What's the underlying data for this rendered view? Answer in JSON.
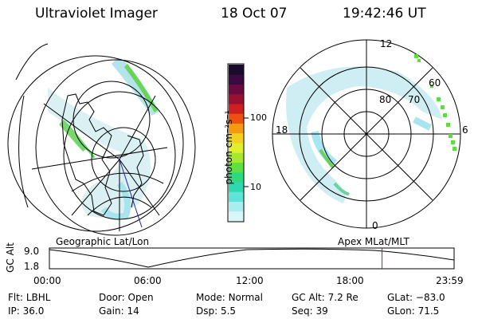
{
  "header": {
    "instrument": "Ultraviolet Imager",
    "date": "18 Oct 07",
    "time": "19:42:46 UT"
  },
  "colorbar": {
    "label": "photon cm⁻²s⁻¹",
    "ticks": [
      "100",
      "10"
    ],
    "colors": [
      "#1b0b2e",
      "#3a0a40",
      "#6a0a40",
      "#9a1030",
      "#cc2020",
      "#ee5010",
      "#f59a10",
      "#f2d020",
      "#dfef30",
      "#a6e830",
      "#60e040",
      "#30d880",
      "#30d8b0",
      "#60e4d8",
      "#a8eef0",
      "#d8f6f8"
    ]
  },
  "polar": {
    "lat_labels": [
      "80",
      "70",
      "60"
    ],
    "mlt_labels": {
      "top": "12",
      "left": "18",
      "right": "6",
      "bottom": "0"
    }
  },
  "maps": {
    "left_caption": "Geographic Lat/Lon",
    "right_caption": "Apex MLat/MLT"
  },
  "timeline": {
    "ylabel": "GC Alt",
    "ytick_top": "9.0",
    "ytick_bottom": "1.8",
    "xticks": [
      "00:00",
      "06:00",
      "12:00",
      "18:00",
      "23:59"
    ],
    "marker_color": "#ff0000",
    "marker_time": "19:42:46"
  },
  "status": {
    "row1": [
      {
        "label": "Flt:",
        "value": "LBHL"
      },
      {
        "label": "Door:",
        "value": "Open"
      },
      {
        "label": "Mode:",
        "value": "Normal"
      },
      {
        "label": "GC Alt:",
        "value": "7.2 Re"
      },
      {
        "label": "GLat:",
        "value": "−83.0"
      }
    ],
    "row2": [
      {
        "label": "IP:",
        "value": "36.0"
      },
      {
        "label": "Gain:",
        "value": "14"
      },
      {
        "label": "Dsp:",
        "value": "5.5"
      },
      {
        "label": "Seq:",
        "value": "39"
      },
      {
        "label": "GLon:",
        "value": "71.5"
      }
    ]
  }
}
